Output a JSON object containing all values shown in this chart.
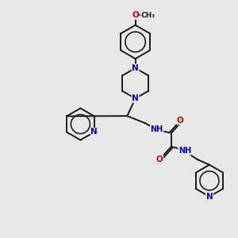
{
  "bg_color": "#e8e8e8",
  "bond_color": "#1a1a1a",
  "N_color": "#0000cc",
  "O_color": "#cc0000",
  "lw": 1.4,
  "figsize": [
    3.0,
    3.0
  ],
  "dpi": 100,
  "xlim": [
    0,
    10
  ],
  "ylim": [
    0,
    10
  ],
  "font_size_atom": 7.5,
  "font_size_small": 6.5
}
